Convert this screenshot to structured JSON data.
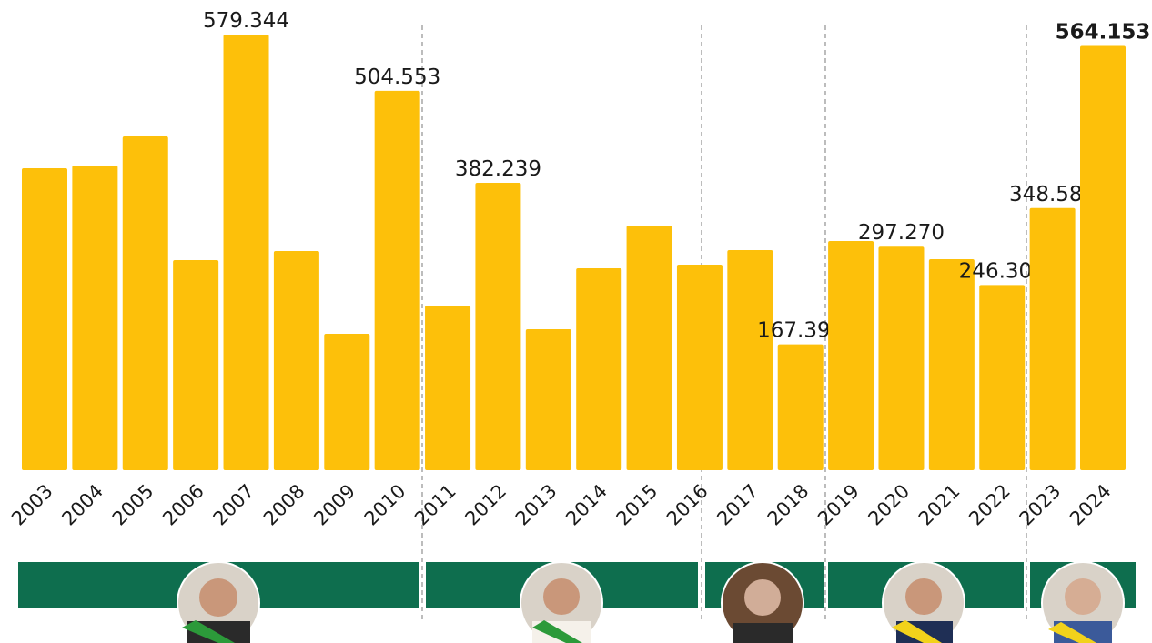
{
  "chart_data": {
    "type": "bar",
    "categories": [
      "2003",
      "2004",
      "2005",
      "2006",
      "2007",
      "2008",
      "2009",
      "2010",
      "2011",
      "2012",
      "2013",
      "2014",
      "2015",
      "2016",
      "2017",
      "2018",
      "2019",
      "2020",
      "2021",
      "2022",
      "2023",
      "2024"
    ],
    "values": [
      401600,
      405200,
      443900,
      279400,
      579344,
      291500,
      181400,
      504553,
      218900,
      382239,
      187500,
      268500,
      325400,
      273300,
      292700,
      167398,
      304800,
      297270,
      280600,
      246309,
      348588,
      564153
    ],
    "value_labels": [
      null,
      null,
      null,
      null,
      "579.344",
      null,
      null,
      "504.553",
      null,
      "382.239",
      null,
      null,
      null,
      null,
      null,
      "167.398",
      null,
      "297.270",
      null,
      "246.309",
      "348.588",
      "564.153"
    ],
    "color": "#fdc00a"
  }
}
